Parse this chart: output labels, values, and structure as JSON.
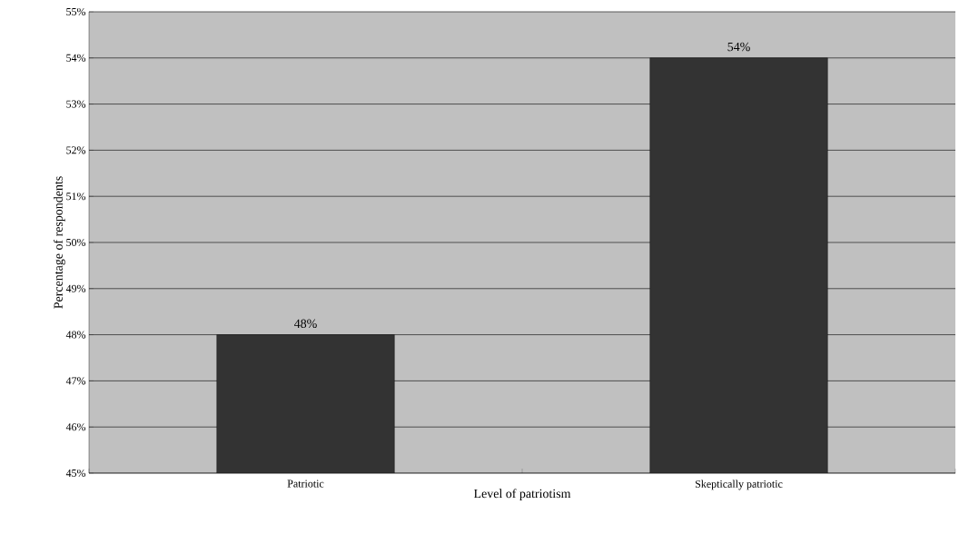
{
  "chart_data": {
    "type": "bar",
    "xlabel": "Level of patriotism",
    "ylabel": "Percentage of respondents",
    "categories": [
      "Patriotic",
      "Skeptically patriotic"
    ],
    "values": [
      48,
      54
    ],
    "value_labels": [
      "48%",
      "54%"
    ],
    "color": "#333333",
    "ylim": [
      45,
      55
    ],
    "yticks": [
      {
        "value": 45,
        "label": "45%"
      },
      {
        "value": 46,
        "label": "46%"
      },
      {
        "value": 47,
        "label": "47%"
      },
      {
        "value": 48,
        "label": "48%"
      },
      {
        "value": 49,
        "label": "49%"
      },
      {
        "value": 50,
        "label": "50%"
      },
      {
        "value": 51,
        "label": "51%"
      },
      {
        "value": 52,
        "label": "52%"
      },
      {
        "value": 53,
        "label": "53%"
      },
      {
        "value": 54,
        "label": "54%"
      },
      {
        "value": 55,
        "label": "55%"
      }
    ],
    "grid": "y"
  }
}
